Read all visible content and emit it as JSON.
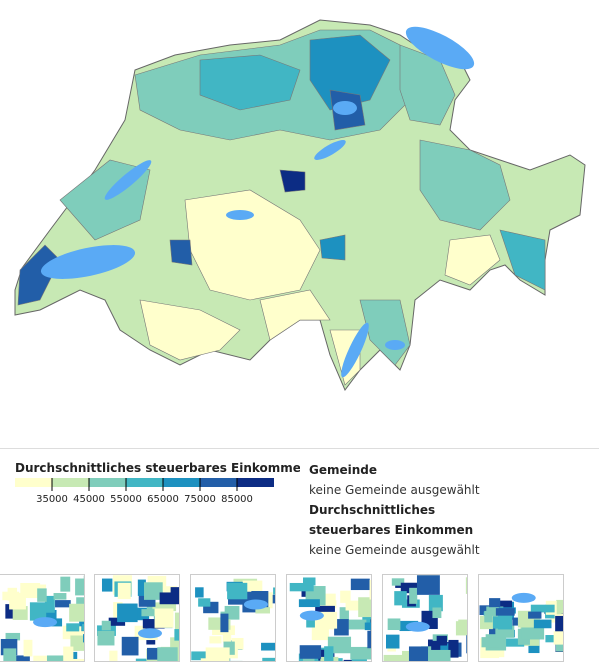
{
  "legend": {
    "title": "Durchschnittliches steuerbares Einkommen",
    "ticks": [
      35000,
      45000,
      55000,
      65000,
      75000,
      85000
    ],
    "colors": [
      "#ffffcc",
      "#c7e9b4",
      "#7fcdbb",
      "#41b6c4",
      "#1d91c0",
      "#225ea8",
      "#0c2c84"
    ]
  },
  "info": {
    "municipality_label": "Gemeinde",
    "municipality_value": "keine Gemeinde ausgewählt",
    "income_label": "Durchschnittliches steuerbares Einkommen",
    "income_value": "keine Gemeinde ausgewählt"
  }
}
